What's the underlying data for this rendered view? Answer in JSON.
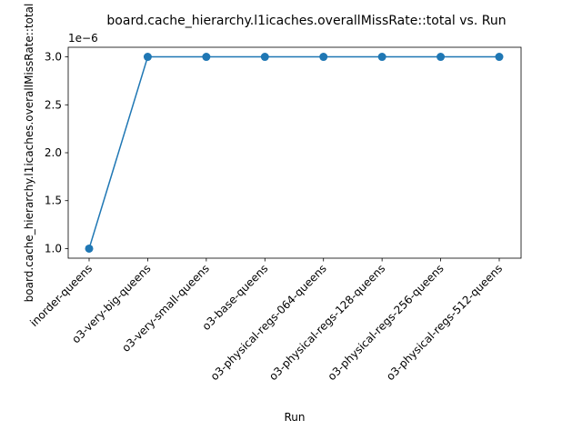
{
  "chart_data": {
    "type": "line",
    "title": "board.cache_hierarchy.l1icaches.overallMissRate::total vs. Run",
    "xlabel": "Run",
    "ylabel": "board.cache_hierarchy.l1icaches.overallMissRate::total",
    "y_offset_label": "1e−6",
    "categories": [
      "inorder-queens",
      "o3-very-big-queens",
      "o3-very-small-queens",
      "o3-base-queens",
      "o3-physical-regs-064-queens",
      "o3-physical-regs-128-queens",
      "o3-physical-regs-256-queens",
      "o3-physical-regs-512-queens"
    ],
    "values": [
      1e-06,
      3e-06,
      3e-06,
      3e-06,
      3e-06,
      3e-06,
      3e-06,
      3e-06
    ],
    "yticks": [
      1.0,
      1.5,
      2.0,
      2.5,
      3.0
    ],
    "ytick_labels": [
      "1.0",
      "1.5",
      "2.0",
      "2.5",
      "3.0"
    ],
    "ylim": [
      9e-07,
      3.1e-06
    ],
    "xtick_rotation_deg": 45,
    "grid": false,
    "legend": "none",
    "marker": "circle",
    "line_color": "#1f77b4"
  }
}
